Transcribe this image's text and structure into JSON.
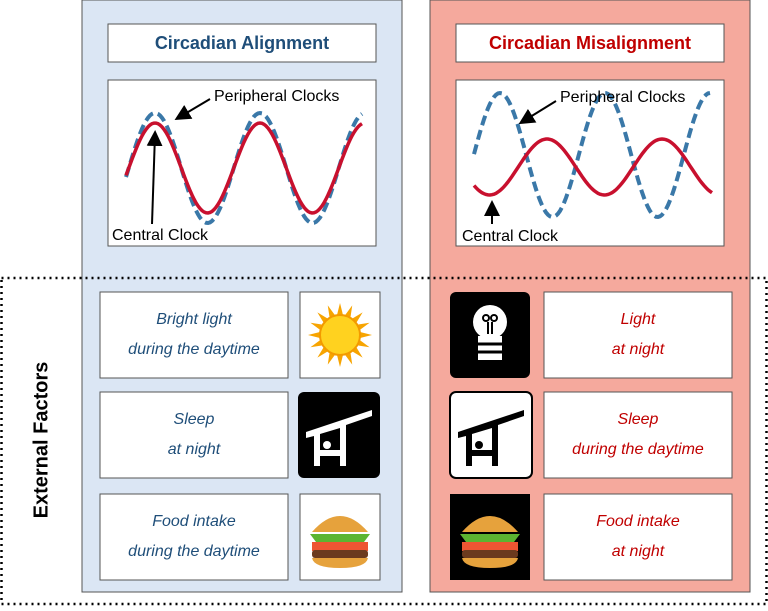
{
  "side_label": "External Factors",
  "alignment": {
    "title": "Circadian Alignment",
    "peripheral_label": "Peripheral Clocks",
    "central_label": "Central Clock",
    "factors": [
      [
        "Bright light",
        "during the daytime"
      ],
      [
        "Sleep",
        "at night"
      ],
      [
        "Food intake",
        "during the daytime"
      ]
    ]
  },
  "misalignment": {
    "title": "Circadian Misalignment",
    "peripheral_label": "Peripheral Clocks",
    "central_label": "Central Clock",
    "factors": [
      [
        "Light",
        "at night"
      ],
      [
        "Sleep",
        "during the daytime"
      ],
      [
        "Food intake",
        "at night"
      ]
    ]
  }
}
